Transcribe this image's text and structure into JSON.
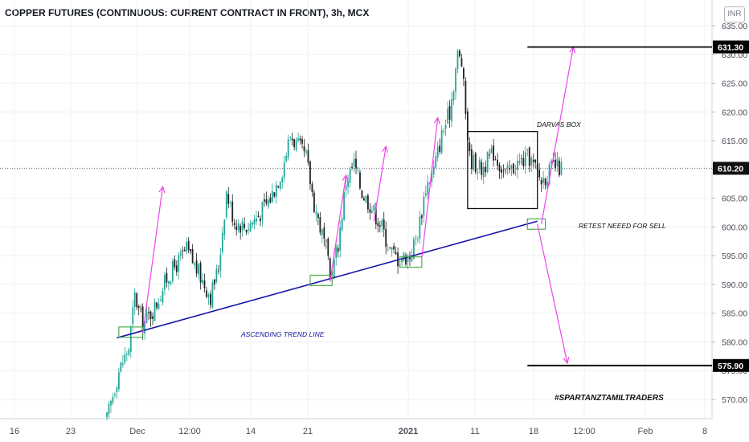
{
  "chart_title": "COPPER FUTURES (CONTINUOUS: CURRENT CONTRACT IN FRONT), 3h, MCX",
  "currency_button": "INR",
  "colors": {
    "up": "#26a69a",
    "down": "#222222",
    "trendline": "#1515a8",
    "arrows": "#ee44ee",
    "retest_box": "#4caf50",
    "grid": "#eef0f3",
    "text": "#131722",
    "axis_text": "#4a4e58"
  },
  "chart_data": {
    "type": "candlestick",
    "title": "COPPER FUTURES (CONTINUOUS: CURRENT CONTRACT IN FRONT), 3h, MCX",
    "x_ticks": [
      {
        "label": "16",
        "bold": false
      },
      {
        "label": "23",
        "bold": false
      },
      {
        "label": "Dec",
        "bold": false
      },
      {
        "label": "12:00",
        "bold": false
      },
      {
        "label": "14",
        "bold": false
      },
      {
        "label": "21",
        "bold": false
      },
      {
        "label": "2021",
        "bold": true
      },
      {
        "label": "11",
        "bold": false
      },
      {
        "label": "18",
        "bold": false
      },
      {
        "label": "12:00",
        "bold": false
      },
      {
        "label": "Feb",
        "bold": false
      },
      {
        "label": "8",
        "bold": false
      }
    ],
    "y_ticks": [
      "570.00",
      "575.00",
      "580.00",
      "585.00",
      "590.00",
      "595.00",
      "600.00",
      "605.00",
      "610.00",
      "615.00",
      "620.00",
      "625.00",
      "630.00",
      "635.00"
    ],
    "y_range": [
      566.2,
      637.1
    ],
    "price_labels": [
      {
        "value": 631.3,
        "text": "631.30",
        "style": "target"
      },
      {
        "value": 610.2,
        "text": "610.20",
        "style": "current"
      },
      {
        "value": 575.9,
        "text": "575.90",
        "style": "target"
      }
    ],
    "current_price": 610.2,
    "candles_window": {
      "start_index": 0,
      "end_index": 228
    },
    "path_points": [
      [
        0,
        566.5
      ],
      [
        6,
        575
      ],
      [
        11,
        579
      ],
      [
        14,
        588
      ],
      [
        18,
        583
      ],
      [
        24,
        586
      ],
      [
        30,
        591
      ],
      [
        40,
        596
      ],
      [
        46,
        592
      ],
      [
        52,
        588
      ],
      [
        56,
        593
      ],
      [
        60,
        606
      ],
      [
        64,
        601
      ],
      [
        70,
        600
      ],
      [
        76,
        602
      ],
      [
        82,
        605
      ],
      [
        88,
        610
      ],
      [
        92,
        616
      ],
      [
        96,
        614
      ],
      [
        100,
        612
      ],
      [
        104,
        604
      ],
      [
        110,
        596
      ],
      [
        112,
        591
      ],
      [
        116,
        597
      ],
      [
        120,
        608
      ],
      [
        124,
        611
      ],
      [
        128,
        606
      ],
      [
        132,
        604
      ],
      [
        138,
        600
      ],
      [
        142,
        596
      ],
      [
        146,
        594.5
      ],
      [
        152,
        595
      ],
      [
        156,
        599
      ],
      [
        160,
        607
      ],
      [
        164,
        610
      ],
      [
        168,
        616
      ],
      [
        172,
        620
      ],
      [
        176,
        630
      ],
      [
        178,
        628.5
      ],
      [
        180,
        620
      ],
      [
        182,
        612
      ],
      [
        188,
        610
      ],
      [
        194,
        613
      ],
      [
        200,
        609
      ],
      [
        206,
        611
      ],
      [
        212,
        612
      ],
      [
        218,
        608
      ],
      [
        224,
        610.5
      ],
      [
        228,
        610.2
      ]
    ],
    "trend_line": {
      "label": "ASCENDING TREND LINE",
      "start": [
        5,
        580.7
      ],
      "end": [
        216,
        601
      ]
    },
    "darvas_box": {
      "label": "DARVAS BOX",
      "x": [
        181,
        216
      ],
      "y": [
        603.2,
        616.6
      ]
    },
    "retest_label": "RETEST NEEED FOR SELL",
    "retest_boxes": [
      {
        "x": [
          6,
          18
        ],
        "y": [
          580.8,
          582.6
        ]
      },
      {
        "x": [
          102,
          113
        ],
        "y": [
          589.8,
          591.6
        ]
      },
      {
        "x": [
          147,
          158
        ],
        "y": [
          593.0,
          594.8
        ]
      },
      {
        "x": [
          211,
          220
        ],
        "y": [
          599.6,
          601.4
        ]
      }
    ],
    "arrows": [
      {
        "from": [
          18,
          581.5
        ],
        "to": [
          28,
          607
        ]
      },
      {
        "from": [
          112,
          590.5
        ],
        "to": [
          120,
          609
        ]
      },
      {
        "from": [
          134,
          601
        ],
        "to": [
          140,
          614
        ]
      },
      {
        "from": [
          158,
          594.5
        ],
        "to": [
          166,
          619
        ]
      },
      {
        "from": [
          218,
          600.5
        ],
        "to": [
          234,
          631.3
        ]
      },
      {
        "from": [
          216,
          600.5
        ],
        "to": [
          231,
          576.3
        ]
      }
    ],
    "target_lines": [
      {
        "value": 631.3,
        "x_start": 211
      },
      {
        "value": 575.9,
        "x_start": 211
      }
    ],
    "watermark": "#SPARTANZTAMILTRADERS"
  }
}
